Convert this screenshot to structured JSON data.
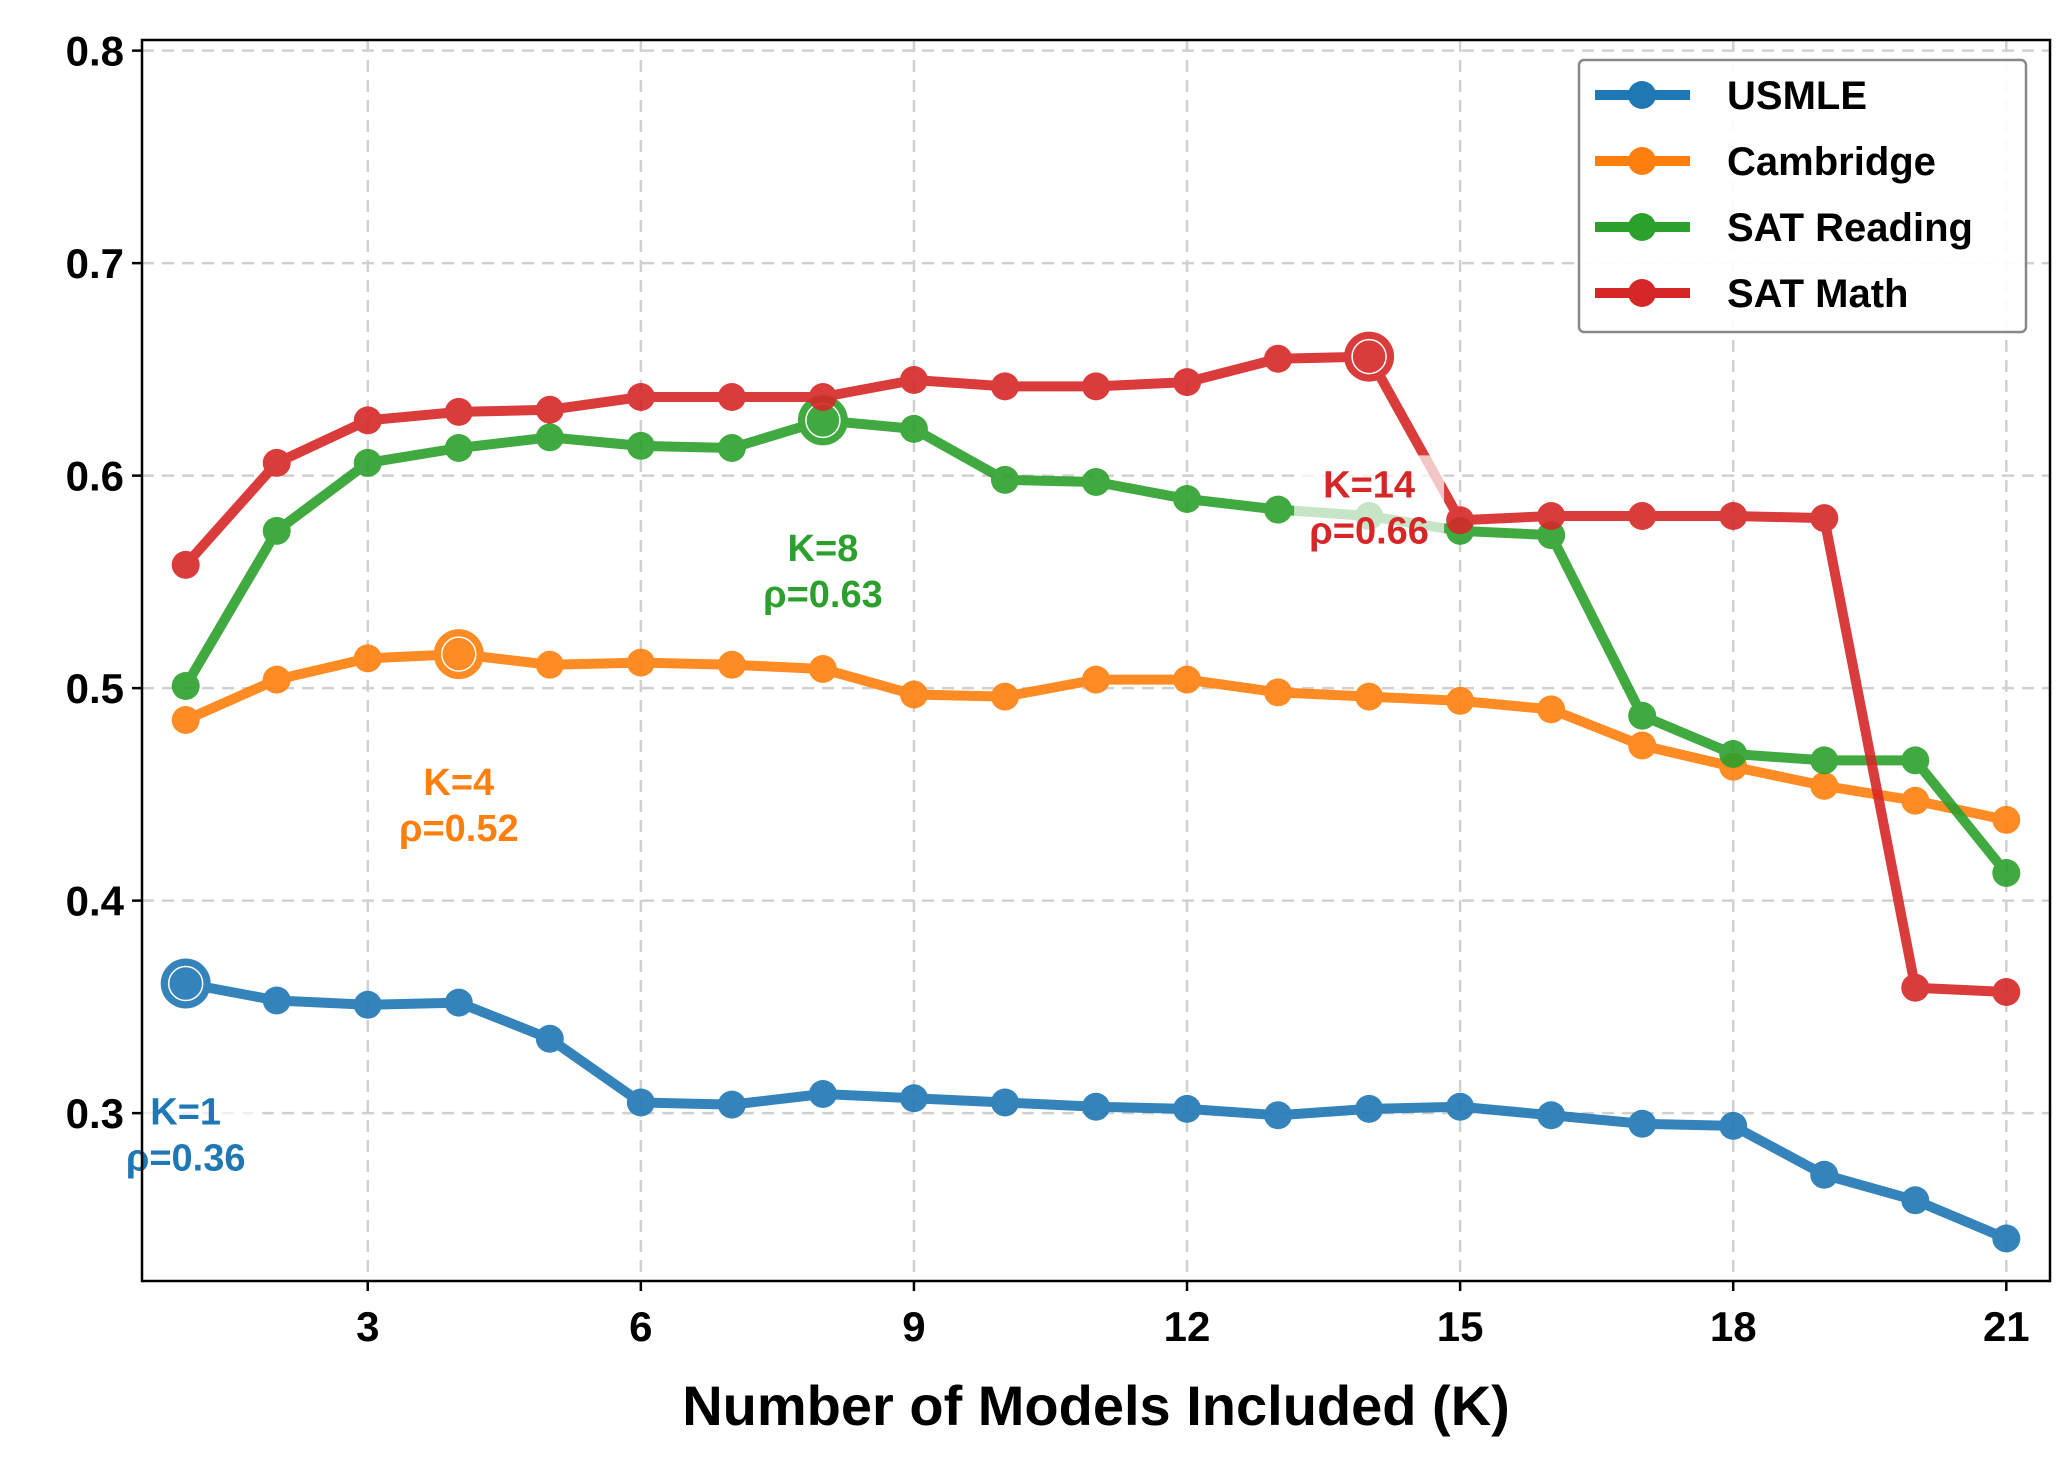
{
  "chart_data": {
    "type": "line",
    "title": "",
    "xlabel": "Number of Models Included (K)",
    "ylabel": "",
    "xlim": [
      0.52,
      21.48
    ],
    "ylim": [
      0.221,
      0.805
    ],
    "xticks": [
      3,
      6,
      9,
      12,
      15,
      18,
      21
    ],
    "yticks": [
      0.3,
      0.4,
      0.5,
      0.6,
      0.7,
      0.8
    ],
    "grid": true,
    "legend_position": "top-right",
    "x": [
      1,
      2,
      3,
      4,
      5,
      6,
      7,
      8,
      9,
      10,
      11,
      12,
      13,
      14,
      15,
      16,
      17,
      18,
      19,
      20,
      21
    ],
    "series": [
      {
        "name": "USMLE",
        "color": "#1f77b4",
        "values": [
          0.361,
          0.353,
          0.351,
          0.352,
          0.335,
          0.305,
          0.304,
          0.309,
          0.307,
          0.305,
          0.303,
          0.302,
          0.299,
          0.302,
          0.303,
          0.299,
          0.295,
          0.294,
          0.271,
          0.259,
          0.241
        ],
        "best": {
          "k": 1,
          "label_k": "K=1",
          "label_rho": "ρ=0.36"
        }
      },
      {
        "name": "Cambridge",
        "color": "#ff7f0e",
        "values": [
          0.485,
          0.504,
          0.514,
          0.516,
          0.511,
          0.512,
          0.511,
          0.509,
          0.497,
          0.496,
          0.504,
          0.504,
          0.498,
          0.496,
          0.494,
          0.49,
          0.473,
          0.463,
          0.454,
          0.447,
          0.438
        ],
        "best": {
          "k": 4,
          "label_k": "K=4",
          "label_rho": "ρ=0.52"
        }
      },
      {
        "name": "SAT Reading",
        "color": "#2ca02c",
        "values": [
          0.501,
          0.574,
          0.606,
          0.613,
          0.618,
          0.614,
          0.613,
          0.626,
          0.622,
          0.598,
          0.597,
          0.589,
          0.584,
          0.581,
          0.574,
          0.572,
          0.487,
          0.469,
          0.466,
          0.466,
          0.413
        ],
        "best": {
          "k": 8,
          "label_k": "K=8",
          "label_rho": "ρ=0.63"
        }
      },
      {
        "name": "SAT Math",
        "color": "#d62728",
        "values": [
          0.558,
          0.606,
          0.626,
          0.63,
          0.631,
          0.637,
          0.637,
          0.637,
          0.645,
          0.642,
          0.642,
          0.644,
          0.655,
          0.656,
          0.579,
          0.581,
          0.581,
          0.581,
          0.58,
          0.359,
          0.357
        ],
        "best": {
          "k": 14,
          "label_k": "K=14",
          "label_rho": "ρ=0.66"
        }
      }
    ]
  }
}
